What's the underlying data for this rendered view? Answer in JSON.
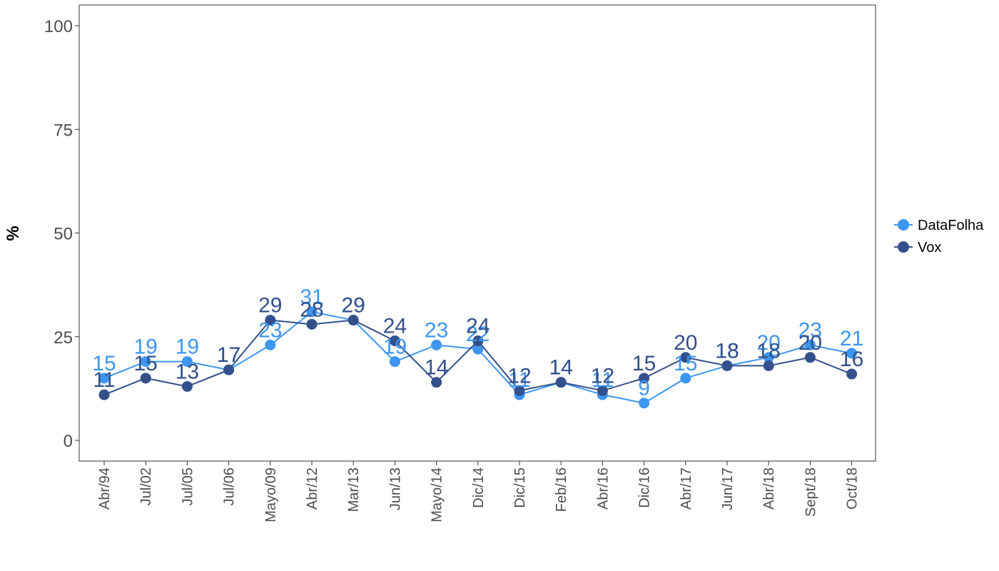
{
  "chart_data": {
    "type": "line",
    "title": "",
    "xlabel": "",
    "ylabel": "%",
    "ylim": [
      0,
      100
    ],
    "yticks": [
      0,
      25,
      50,
      75,
      100
    ],
    "grid": false,
    "legend_position": "right",
    "categories": [
      "Abr/94",
      "Jul/02",
      "Jul/05",
      "Jul/06",
      "Mayo/09",
      "Abr/12",
      "Mar/13",
      "Jun/13",
      "Mayo/14",
      "Dic/14",
      "Dic/15",
      "Feb/16",
      "Abr/16",
      "Dic/16",
      "Abr/17",
      "Jun/17",
      "Abr/18",
      "Sept/18",
      "Oct/18"
    ],
    "series": [
      {
        "name": "DataFolha",
        "color": "#3d96f0",
        "values": [
          15,
          19,
          19,
          17,
          23,
          31,
          29,
          19,
          23,
          22,
          11,
          14,
          11,
          9,
          15,
          18,
          20,
          23,
          21
        ]
      },
      {
        "name": "Vox",
        "color": "#33508c",
        "values": [
          11,
          15,
          13,
          17,
          29,
          28,
          29,
          24,
          14,
          24,
          12,
          14,
          12,
          15,
          20,
          18,
          18,
          20,
          16
        ]
      }
    ]
  }
}
